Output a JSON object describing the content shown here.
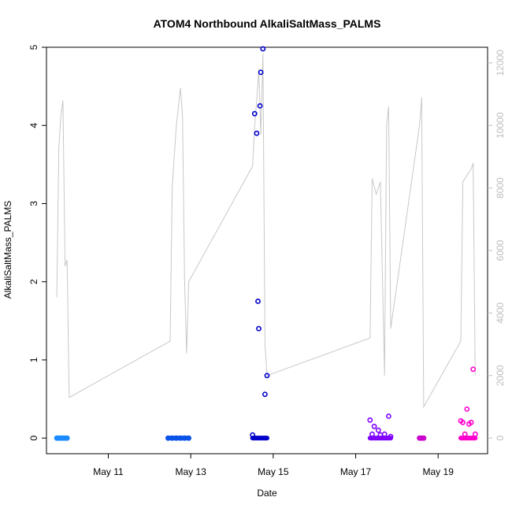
{
  "chart_data": {
    "type": "scatter",
    "title": "ATOM4 Northbound AlkaliSaltMass_PALMS",
    "xlabel": "Date",
    "ylabel": "AlkaliSaltMass_PALMS",
    "x_ticks": [
      "May 11",
      "May 13",
      "May 15",
      "May 17",
      "May 19"
    ],
    "x_tick_days": [
      11,
      13,
      15,
      17,
      19
    ],
    "xlim": [
      9.5,
      20.2
    ],
    "ylim": [
      -0.2,
      5.0
    ],
    "y_ticks": [
      0,
      1,
      2,
      3,
      4,
      5
    ],
    "y2lim": [
      -500,
      12500
    ],
    "y2_ticks": [
      0,
      2000,
      4000,
      6000,
      8000,
      10000,
      12000
    ],
    "grid": false,
    "colors": {
      "altitude_line": "#c8c8c8",
      "start": "#1a8cff",
      "mid": "#0000cc",
      "late": "#7f00ff",
      "end": "#ff00cc"
    },
    "altitude_series": {
      "x": [
        9.75,
        9.8,
        9.85,
        9.9,
        9.95,
        10.0,
        10.05,
        12.5,
        12.55,
        12.6,
        12.65,
        12.7,
        12.75,
        12.8,
        12.85,
        12.9,
        12.95,
        14.5,
        14.55,
        14.6,
        14.65,
        14.7,
        14.75,
        14.8,
        14.85,
        17.35,
        17.4,
        17.5,
        17.6,
        17.7,
        17.75,
        17.8,
        17.85,
        18.55,
        18.6,
        18.65,
        19.55,
        19.6,
        19.7,
        19.8,
        19.85,
        19.9
      ],
      "y": [
        4500,
        9300,
        10300,
        10800,
        5500,
        5700,
        1300,
        3100,
        8000,
        9000,
        10000,
        10600,
        11200,
        10300,
        5100,
        2700,
        5000,
        8700,
        10000,
        10800,
        11800,
        9700,
        12300,
        3000,
        2000,
        3200,
        8300,
        7800,
        8200,
        2000,
        10000,
        10600,
        3500,
        10000,
        10900,
        1000,
        3100,
        8200,
        8400,
        8600,
        8800,
        2000
      ]
    },
    "series": [
      {
        "color": "#1a8cff",
        "x": [
          9.75,
          9.8,
          9.85,
          9.9,
          9.95,
          10.0
        ],
        "y": [
          0,
          0,
          0,
          0,
          0,
          0
        ]
      },
      {
        "color": "#0b52e8",
        "x": [
          12.45,
          12.55,
          12.65,
          12.75,
          12.85,
          12.95
        ],
        "y": [
          0,
          0,
          0,
          0,
          0,
          0
        ]
      },
      {
        "color": "#0000cc",
        "x": [
          14.5,
          14.55,
          14.6,
          14.63,
          14.65,
          14.68,
          14.7,
          14.75,
          14.8,
          14.85
        ],
        "y": [
          0.04,
          4.15,
          3.9,
          1.75,
          1.4,
          4.25,
          4.68,
          4.98,
          0.56,
          0.8
        ]
      },
      {
        "color": "#7f00ff",
        "x": [
          17.35,
          17.4,
          17.45,
          17.55,
          17.6,
          17.7,
          17.8,
          17.85
        ],
        "y": [
          0.23,
          0.05,
          0.15,
          0.1,
          0.04,
          0.05,
          0.28,
          0.02
        ]
      },
      {
        "color": "#cc00cc",
        "x": [
          18.55,
          18.6,
          18.65
        ],
        "y": [
          0,
          0,
          0
        ]
      },
      {
        "color": "#ff00cc",
        "x": [
          19.55,
          19.6,
          19.65,
          19.7,
          19.75,
          19.8,
          19.85,
          19.9
        ],
        "y": [
          0.22,
          0.2,
          0.05,
          0.37,
          0.18,
          0.2,
          0.88,
          0.05
        ]
      }
    ]
  }
}
